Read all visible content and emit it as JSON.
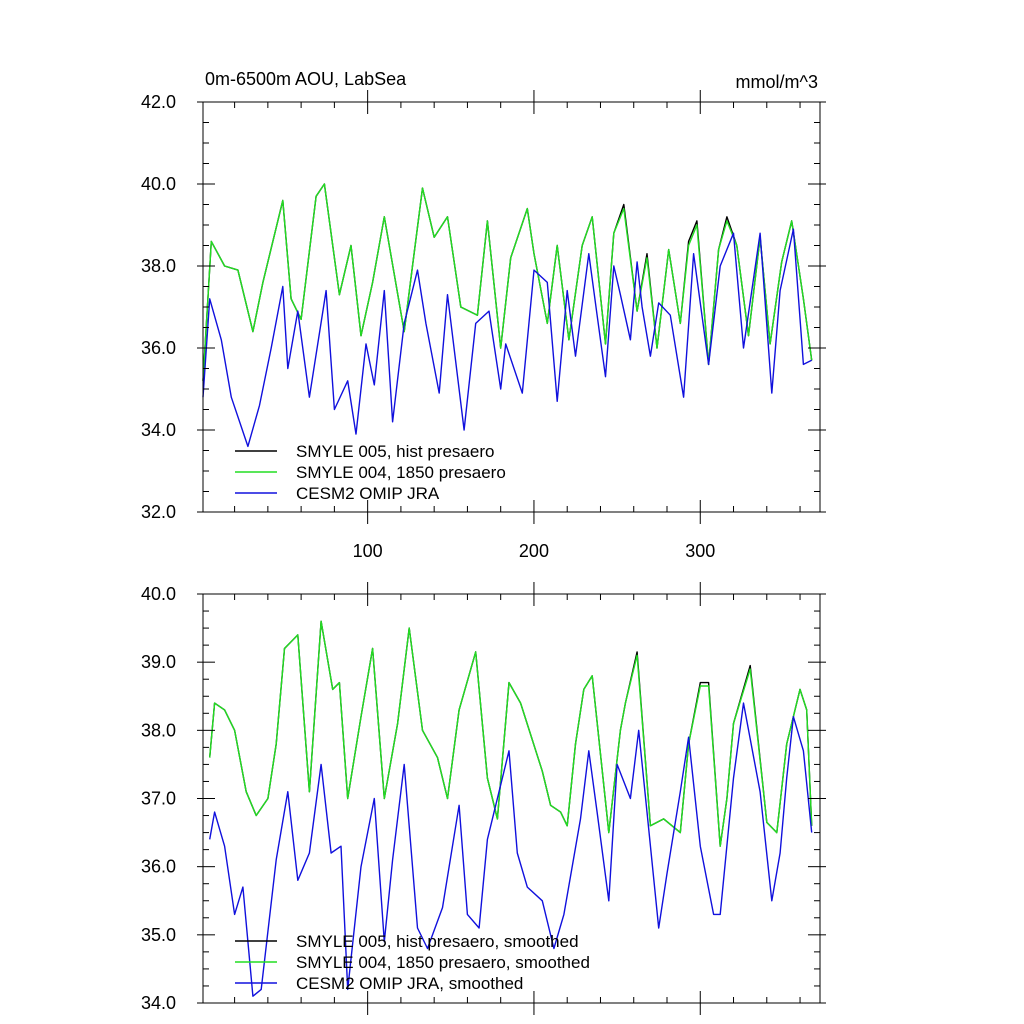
{
  "chart_data": [
    {
      "type": "line",
      "title_left": "0m-6500m AOU, LabSea",
      "title_right": "mmol/m^3",
      "xlabel": "",
      "ylabel": "",
      "xlim": [
        1,
        372
      ],
      "ylim": [
        32,
        42
      ],
      "yticks": [
        32,
        34,
        36,
        38,
        40,
        42
      ],
      "ytick_labels": [
        "32.0",
        "34.0",
        "36.0",
        "38.0",
        "40.0",
        "42.0"
      ],
      "xticks": [
        100,
        200,
        300
      ],
      "xtick_labels": [
        "100",
        "200",
        "300"
      ],
      "xtick_labels_shown": true,
      "grid": false,
      "legend_position": "bottom-left",
      "series": [
        {
          "name": "SMYLE 005, hist presaero",
          "color": "#000000",
          "x": [
            1,
            6,
            14,
            22,
            31,
            37,
            49,
            54,
            60,
            69,
            74,
            83,
            90,
            96,
            103,
            110,
            122,
            127,
            133,
            140,
            148,
            156,
            166,
            172,
            180,
            186,
            196,
            200,
            208,
            214,
            221,
            229,
            235,
            243,
            248,
            254,
            262,
            268,
            274,
            281,
            288,
            293,
            298,
            305,
            311,
            316,
            322,
            329,
            336,
            342,
            349,
            355,
            362,
            367
          ],
          "y": [
            35.2,
            38.6,
            38.0,
            37.9,
            36.4,
            37.6,
            39.6,
            37.2,
            36.7,
            39.7,
            40.0,
            37.3,
            38.5,
            36.3,
            37.6,
            39.2,
            36.4,
            38.0,
            39.9,
            38.7,
            39.2,
            37.0,
            36.8,
            39.1,
            36.0,
            38.2,
            39.4,
            38.3,
            36.6,
            38.5,
            36.2,
            38.5,
            39.2,
            36.1,
            38.8,
            39.5,
            36.9,
            38.3,
            36.0,
            38.4,
            36.6,
            38.6,
            39.1,
            35.6,
            38.4,
            39.2,
            38.5,
            36.3,
            38.7,
            36.1,
            38.1,
            39.1,
            37.2,
            35.7
          ]
        },
        {
          "name": "SMYLE 004, 1850 presaero",
          "color": "#22dd22",
          "x": [
            1,
            6,
            14,
            22,
            31,
            37,
            49,
            54,
            60,
            69,
            74,
            83,
            90,
            96,
            103,
            110,
            122,
            127,
            133,
            140,
            148,
            156,
            166,
            172,
            180,
            186,
            196,
            200,
            208,
            214,
            221,
            229,
            235,
            243,
            248,
            254,
            262,
            268,
            274,
            281,
            288,
            293,
            298,
            305,
            311,
            316,
            322,
            329,
            336,
            342,
            349,
            355,
            362,
            367
          ],
          "y": [
            35.2,
            38.6,
            38.0,
            37.9,
            36.4,
            37.6,
            39.6,
            37.2,
            36.7,
            39.7,
            40.0,
            37.3,
            38.5,
            36.3,
            37.6,
            39.2,
            36.4,
            38.0,
            39.9,
            38.7,
            39.2,
            37.0,
            36.8,
            39.1,
            36.0,
            38.2,
            39.4,
            38.3,
            36.6,
            38.5,
            36.2,
            38.5,
            39.2,
            36.1,
            38.8,
            39.4,
            36.9,
            38.2,
            36.0,
            38.4,
            36.6,
            38.5,
            39.0,
            35.6,
            38.4,
            39.1,
            38.5,
            36.3,
            38.7,
            36.1,
            38.1,
            39.1,
            37.2,
            35.7
          ]
        },
        {
          "name": "CESM2 OMIP JRA",
          "color": "#1010dd",
          "x": [
            1,
            5,
            12,
            18,
            28,
            35,
            42,
            49,
            52,
            58,
            65,
            75,
            80,
            88,
            93,
            99,
            104,
            110,
            115,
            122,
            130,
            135,
            143,
            148,
            158,
            165,
            173,
            180,
            183,
            193,
            200,
            208,
            214,
            220,
            225,
            233,
            238,
            243,
            248,
            252,
            258,
            262,
            265,
            270,
            275,
            282,
            290,
            296,
            305,
            312,
            320,
            326,
            336,
            343,
            348,
            356,
            362,
            367
          ],
          "y": [
            34.8,
            37.2,
            36.2,
            34.8,
            33.6,
            34.6,
            36.0,
            37.5,
            35.5,
            36.9,
            34.8,
            37.4,
            34.5,
            35.2,
            33.9,
            36.1,
            35.1,
            37.4,
            34.2,
            36.6,
            37.9,
            36.6,
            34.9,
            37.3,
            34.0,
            36.6,
            36.9,
            35.0,
            36.1,
            34.9,
            37.9,
            37.6,
            34.7,
            37.4,
            35.8,
            38.3,
            36.8,
            35.3,
            38.0,
            37.3,
            36.2,
            38.1,
            37.0,
            35.8,
            37.1,
            36.8,
            34.8,
            38.3,
            35.6,
            38.0,
            38.8,
            36.0,
            38.8,
            34.9,
            37.4,
            38.9,
            35.6,
            35.7
          ]
        }
      ]
    },
    {
      "type": "line",
      "title_left": "",
      "title_right": "",
      "xlabel": "",
      "ylabel": "",
      "xlim": [
        1,
        372
      ],
      "ylim": [
        34,
        40
      ],
      "yticks": [
        34,
        35,
        36,
        37,
        38,
        39,
        40
      ],
      "ytick_labels": [
        "34.0",
        "35.0",
        "36.0",
        "37.0",
        "38.0",
        "39.0",
        "40.0"
      ],
      "xticks": [
        100,
        200,
        300
      ],
      "xtick_labels": [],
      "xtick_labels_shown": false,
      "grid": false,
      "legend_position": "bottom-left",
      "series": [
        {
          "name": "SMYLE 005, hist presaero, smoothed",
          "color": "#000000",
          "x": [
            5,
            8,
            14,
            20,
            27,
            33,
            40,
            45,
            50,
            58,
            65,
            72,
            79,
            83,
            88,
            96,
            103,
            110,
            118,
            125,
            133,
            142,
            148,
            155,
            165,
            172,
            178,
            185,
            192,
            205,
            210,
            216,
            220,
            225,
            230,
            235,
            245,
            252,
            255,
            262,
            270,
            278,
            288,
            293,
            300,
            305,
            312,
            316,
            320,
            330,
            340,
            346,
            352,
            360,
            364,
            367
          ],
          "y": [
            37.6,
            38.4,
            38.3,
            38.0,
            37.1,
            36.75,
            37.0,
            37.8,
            39.2,
            39.4,
            37.1,
            39.6,
            38.6,
            38.7,
            37.0,
            38.2,
            39.2,
            37.0,
            38.1,
            39.5,
            38.0,
            37.6,
            37.0,
            38.3,
            39.15,
            37.3,
            36.7,
            38.7,
            38.4,
            37.4,
            36.9,
            36.8,
            36.6,
            37.8,
            38.6,
            38.8,
            36.5,
            38.0,
            38.4,
            39.15,
            36.6,
            36.7,
            36.5,
            37.8,
            38.7,
            38.7,
            36.3,
            37.0,
            38.1,
            38.95,
            36.65,
            36.5,
            37.8,
            38.6,
            38.3,
            36.6
          ]
        },
        {
          "name": "SMYLE 004, 1850 presaero, smoothed",
          "color": "#22dd22",
          "x": [
            5,
            8,
            14,
            20,
            27,
            33,
            40,
            45,
            50,
            58,
            65,
            72,
            79,
            83,
            88,
            96,
            103,
            110,
            118,
            125,
            133,
            142,
            148,
            155,
            165,
            172,
            178,
            185,
            192,
            205,
            210,
            216,
            220,
            225,
            230,
            235,
            245,
            252,
            255,
            262,
            270,
            278,
            288,
            293,
            300,
            305,
            312,
            316,
            320,
            330,
            340,
            346,
            352,
            360,
            364,
            367
          ],
          "y": [
            37.6,
            38.4,
            38.3,
            38.0,
            37.1,
            36.75,
            37.0,
            37.8,
            39.2,
            39.4,
            37.1,
            39.6,
            38.6,
            38.7,
            37.0,
            38.2,
            39.2,
            37.0,
            38.1,
            39.5,
            38.0,
            37.6,
            37.0,
            38.3,
            39.15,
            37.3,
            36.7,
            38.7,
            38.4,
            37.4,
            36.9,
            36.8,
            36.6,
            37.8,
            38.6,
            38.8,
            36.5,
            38.0,
            38.4,
            39.1,
            36.6,
            36.7,
            36.5,
            37.8,
            38.65,
            38.65,
            36.3,
            37.0,
            38.1,
            38.9,
            36.65,
            36.5,
            37.8,
            38.6,
            38.3,
            36.6
          ]
        },
        {
          "name": "CESM2 OMIP JRA, smoothed",
          "color": "#1010dd",
          "x": [
            5,
            8,
            14,
            20,
            25,
            31,
            36,
            45,
            52,
            58,
            65,
            72,
            78,
            84,
            88,
            96,
            104,
            110,
            115,
            122,
            130,
            136,
            145,
            155,
            160,
            167,
            172,
            185,
            190,
            196,
            205,
            212,
            218,
            228,
            233,
            238,
            245,
            250,
            258,
            263,
            268,
            275,
            280,
            288,
            293,
            300,
            308,
            312,
            320,
            326,
            336,
            343,
            348,
            352,
            356,
            362,
            367
          ],
          "y": [
            36.4,
            36.8,
            36.3,
            35.3,
            35.7,
            34.1,
            34.2,
            36.1,
            37.1,
            35.8,
            36.2,
            37.5,
            36.2,
            36.3,
            34.2,
            36.0,
            37.0,
            34.9,
            36.1,
            37.5,
            35.1,
            34.8,
            35.4,
            36.9,
            35.3,
            35.1,
            36.4,
            37.7,
            36.2,
            35.7,
            35.5,
            34.8,
            35.3,
            36.7,
            37.7,
            36.8,
            35.5,
            37.5,
            37.0,
            38.0,
            36.8,
            35.1,
            35.9,
            37.1,
            37.9,
            36.3,
            35.3,
            35.3,
            37.3,
            38.4,
            37.1,
            35.5,
            36.2,
            37.3,
            38.2,
            37.7,
            36.5
          ]
        }
      ]
    }
  ]
}
